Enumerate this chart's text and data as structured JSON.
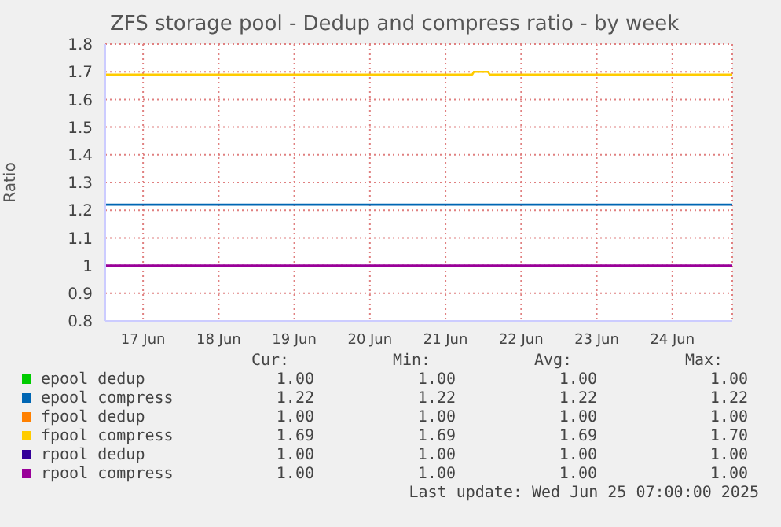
{
  "chart_data": {
    "type": "line",
    "title": "ZFS storage pool - Dedup and compress ratio - by week",
    "ylabel": "Ratio",
    "x": [
      "2025-06-17T00:00",
      "2025-06-21T20:30",
      "2025-06-21T21:00",
      "2025-06-22T01:30",
      "2025-06-22T02:00",
      "2025-06-25T07:00"
    ],
    "series": [
      {
        "name": "epool dedup",
        "color": "#00cc00",
        "values": [
          null,
          null,
          null,
          null,
          null,
          null
        ]
      },
      {
        "name": "epool compress",
        "color": "#0066b3",
        "values": [
          1.22,
          1.22,
          1.22,
          1.22,
          1.22,
          1.22
        ]
      },
      {
        "name": "fpool dedup",
        "color": "#ff8000",
        "values": [
          null,
          null,
          null,
          null,
          null,
          null
        ]
      },
      {
        "name": "fpool compress",
        "color": "#ffcc00",
        "values": [
          1.69,
          1.69,
          1.7,
          1.7,
          1.69,
          1.69
        ]
      },
      {
        "name": "rpool dedup",
        "color": "#330099",
        "values": [
          null,
          null,
          null,
          null,
          null,
          null
        ]
      },
      {
        "name": "rpool compress",
        "color": "#990099",
        "values": [
          1.0,
          1.0,
          1.0,
          1.0,
          1.0,
          1.0
        ]
      }
    ],
    "xlim": [
      "2025-06-17T00:00",
      "2025-06-25T07:00"
    ],
    "xticks": [
      {
        "value": "2025-06-17T12:00",
        "label": "17 Jun"
      },
      {
        "value": "2025-06-18T12:00",
        "label": "18 Jun"
      },
      {
        "value": "2025-06-19T12:00",
        "label": "19 Jun"
      },
      {
        "value": "2025-06-20T12:00",
        "label": "20 Jun"
      },
      {
        "value": "2025-06-21T12:00",
        "label": "21 Jun"
      },
      {
        "value": "2025-06-22T12:00",
        "label": "22 Jun"
      },
      {
        "value": "2025-06-23T12:00",
        "label": "23 Jun"
      },
      {
        "value": "2025-06-24T12:00",
        "label": "24 Jun"
      }
    ],
    "ylim": [
      0.8,
      1.8
    ],
    "yticks": [
      0.8,
      0.9,
      1.0,
      1.1,
      1.2,
      1.3,
      1.4,
      1.5,
      1.6,
      1.7,
      1.8
    ],
    "grid": true,
    "legend": "bottom",
    "marker": "none",
    "line_style": "solid",
    "annotations": [
      "Cur:",
      "Min:",
      "Avg:",
      "Max:",
      "1.00",
      "1.00",
      "1.00",
      "1.00",
      "1.22",
      "1.22",
      "1.22",
      "1.22",
      "1.00",
      "1.00",
      "1.00",
      "1.00",
      "1.69",
      "1.69",
      "1.69",
      "1.70",
      "1.00",
      "1.00",
      "1.00",
      "1.00",
      "1.00",
      "1.00",
      "1.00",
      "1.00",
      "Last update: Wed Jun 25 07:00:00 2025"
    ]
  }
}
